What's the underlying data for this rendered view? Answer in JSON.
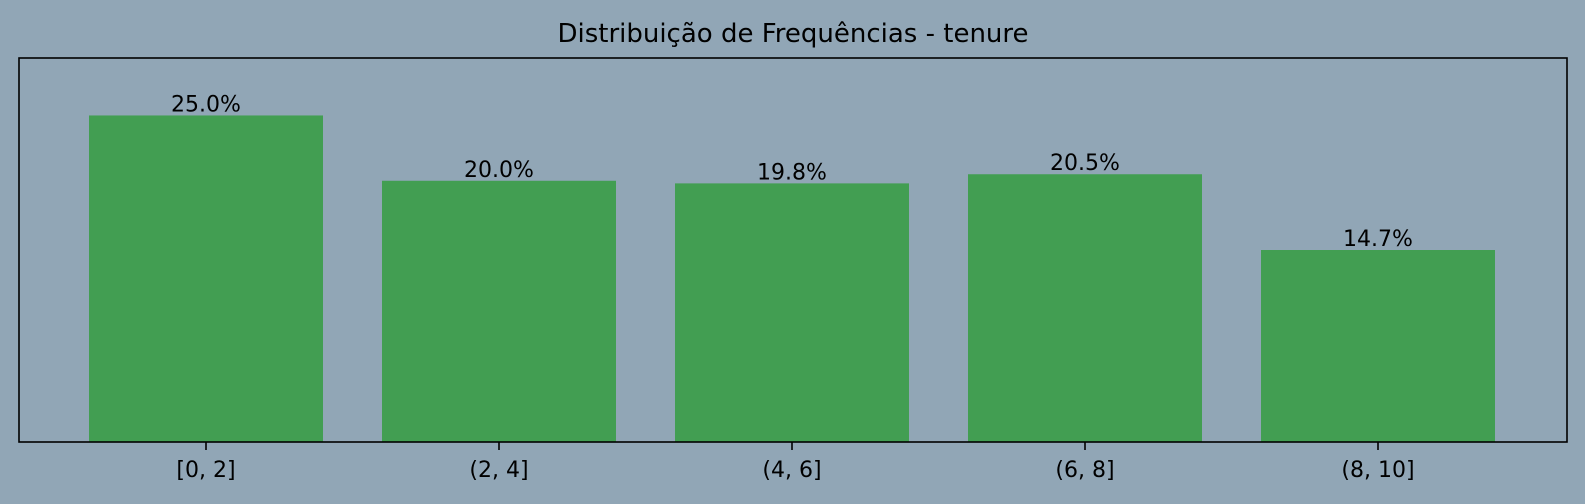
{
  "chart_data": {
    "type": "bar",
    "title": "Distribuição de Frequências - tenure",
    "xlabel": "",
    "ylabel": "",
    "categories": [
      "[0, 2]",
      "(2, 4]",
      "(4, 6]",
      "(6, 8]",
      "(8, 10]"
    ],
    "values": [
      25.0,
      20.0,
      19.8,
      20.5,
      14.7
    ],
    "value_labels": [
      "25.0%",
      "20.0%",
      "19.8%",
      "20.5%",
      "14.7%"
    ],
    "ylim": [
      0,
      29.4
    ],
    "y_axis_visible": false,
    "grid": false,
    "legend": "none",
    "colors": {
      "bar": "#429e52",
      "background": "#91a6b6",
      "axes": "#000000"
    }
  }
}
